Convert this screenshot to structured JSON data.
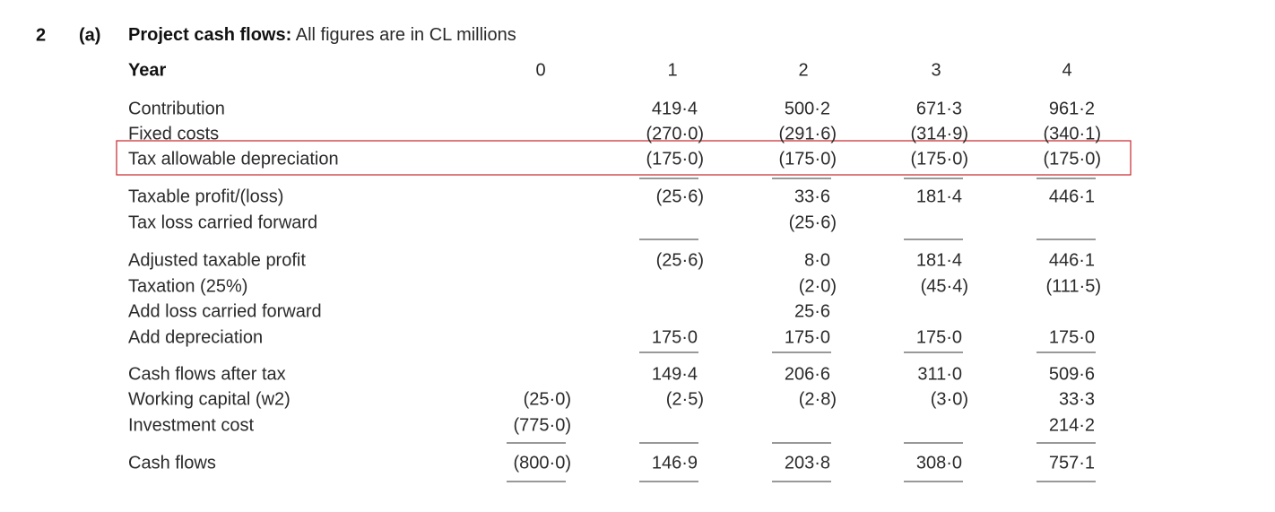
{
  "header": {
    "number": "2",
    "part": "(a)",
    "title": "Project cash flows:",
    "subtitle": "All figures are in CL millions"
  },
  "table": {
    "columns": [
      "Year",
      "0",
      "1",
      "2",
      "3",
      "4"
    ],
    "rows": [
      {
        "label": "Contribution",
        "values": [
          null,
          "419·4",
          "500·2",
          "671·3",
          "961·2"
        ]
      },
      {
        "label": "Fixed costs",
        "values": [
          null,
          "(270·0)",
          "(291·6)",
          "(314·9)",
          "(340·1)"
        ]
      },
      {
        "label": "Tax allowable depreciation",
        "values": [
          null,
          "(175·0)",
          "(175·0)",
          "(175·0)",
          "(175·0)"
        ]
      },
      {
        "label": "Taxable profit/(loss)",
        "values": [
          null,
          "(25·6)",
          "33·6",
          "181·4",
          "446·1"
        ]
      },
      {
        "label": "Tax loss carried forward",
        "values": [
          null,
          null,
          "(25·6)",
          null,
          null
        ]
      },
      {
        "label": "Adjusted taxable profit",
        "values": [
          null,
          "(25·6)",
          "8·0",
          "181·4",
          "446·1"
        ]
      },
      {
        "label": "Taxation (25%)",
        "values": [
          null,
          null,
          "(2·0)",
          "(45·4)",
          "(111·5)"
        ]
      },
      {
        "label": "Add loss carried forward",
        "values": [
          null,
          null,
          "25·6",
          null,
          null
        ]
      },
      {
        "label": "Add depreciation",
        "values": [
          null,
          "175·0",
          "175·0",
          "175·0",
          "175·0"
        ]
      },
      {
        "label": "Cash flows after tax",
        "values": [
          null,
          "149·4",
          "206·6",
          "311·0",
          "509·6"
        ]
      },
      {
        "label": "Working capital (w2)",
        "values": [
          "(25·0)",
          "(2·5)",
          "(2·8)",
          "(3·0)",
          "33·3"
        ]
      },
      {
        "label": "Investment cost",
        "values": [
          "(775·0)",
          null,
          null,
          null,
          "214·2"
        ]
      },
      {
        "label": "Cash flows",
        "values": [
          "(800·0)",
          "146·9",
          "203·8",
          "308·0",
          "757·1"
        ]
      }
    ]
  }
}
